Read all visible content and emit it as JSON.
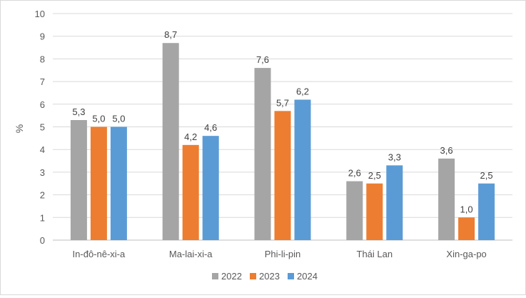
{
  "chart_data": {
    "type": "bar",
    "title": "",
    "xlabel": "",
    "ylabel": "%",
    "ylim": [
      0,
      10
    ],
    "yticks": [
      "0",
      "1",
      "2",
      "3",
      "4",
      "5",
      "6",
      "7",
      "8",
      "9",
      "10"
    ],
    "grid": true,
    "legend_position": "bottom",
    "categories": [
      "In-đô-nê-xi-a",
      "Ma-lai-xi-a",
      "Phi-li-pin",
      "Thái Lan",
      "Xin-ga-po"
    ],
    "series": [
      {
        "name": "2022",
        "color": "#a5a5a5",
        "values": [
          5.3,
          8.7,
          7.6,
          2.6,
          3.6
        ],
        "labels": [
          "5,3",
          "8,7",
          "7,6",
          "2,6",
          "3,6"
        ]
      },
      {
        "name": "2023",
        "color": "#ed7d31",
        "values": [
          5.0,
          4.2,
          5.7,
          2.5,
          1.0
        ],
        "labels": [
          "5,0",
          "4,2",
          "5,7",
          "2,5",
          "1,0"
        ]
      },
      {
        "name": "2024",
        "color": "#5b9bd5",
        "values": [
          5.0,
          4.6,
          6.2,
          3.3,
          2.5
        ],
        "labels": [
          "5,0",
          "4,6",
          "6,2",
          "3,3",
          "2,5"
        ]
      }
    ]
  }
}
